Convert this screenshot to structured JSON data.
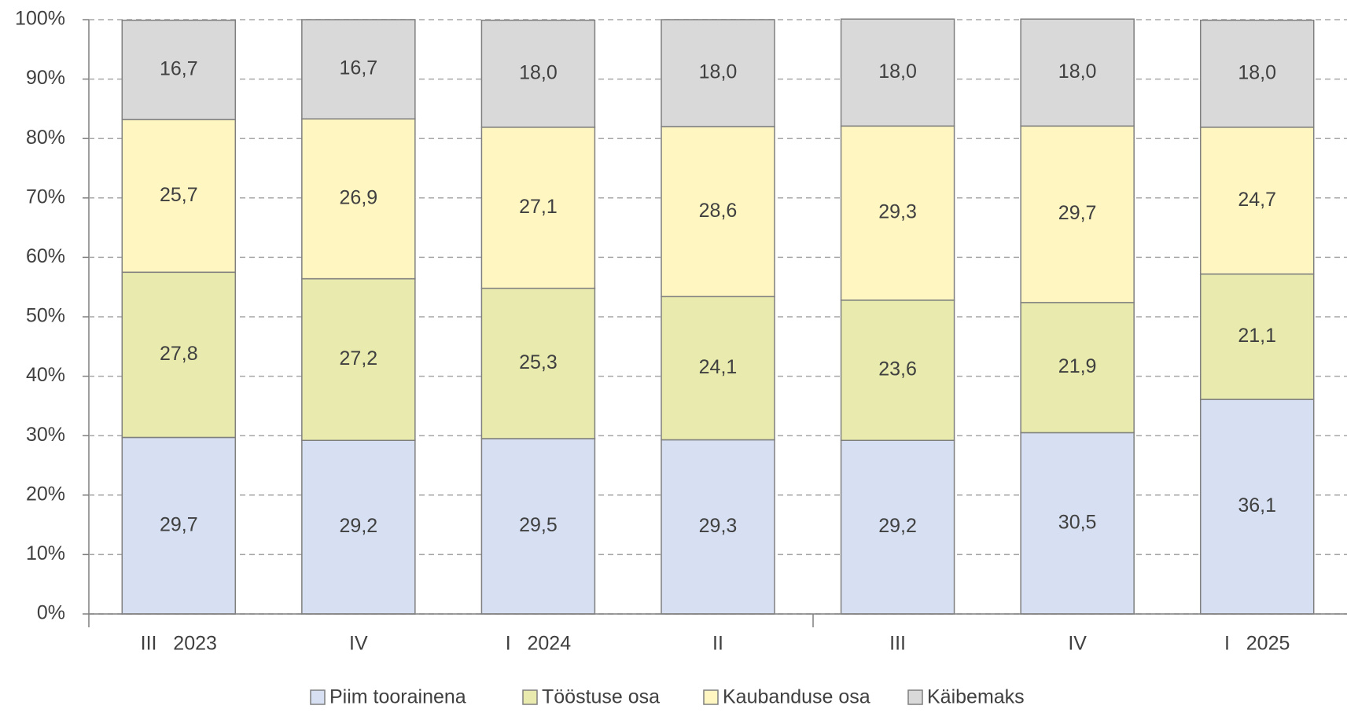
{
  "chart_data": {
    "type": "stacked_bar",
    "categories": [
      "III   2023",
      "IV",
      "I   2024",
      "II",
      "III",
      "IV",
      "I   2025"
    ],
    "series": [
      {
        "name": "Piim toorainena",
        "color": "#d6e0f2",
        "values": [
          29.7,
          29.2,
          29.5,
          29.3,
          29.2,
          30.5,
          36.1
        ],
        "value_labels": [
          "29,7",
          "29,2",
          "29,5",
          "29,3",
          "29,2",
          "30,5",
          "36,1"
        ]
      },
      {
        "name": "Tööstuse osa",
        "color": "#e8ebad",
        "values": [
          27.8,
          27.2,
          25.3,
          24.1,
          23.6,
          21.9,
          21.1
        ],
        "value_labels": [
          "27,8",
          "27,2",
          "25,3",
          "24,1",
          "23,6",
          "21,9",
          "21,1"
        ]
      },
      {
        "name": "Kaubanduse osa",
        "color": "#fff6c2",
        "values": [
          25.7,
          26.9,
          27.1,
          28.6,
          29.3,
          29.7,
          24.7
        ],
        "value_labels": [
          "25,7",
          "26,9",
          "27,1",
          "28,6",
          "29,3",
          "29,7",
          "24,7"
        ]
      },
      {
        "name": "Käibemaks",
        "color": "#d9d9d9",
        "values": [
          16.7,
          16.7,
          18.0,
          18.0,
          18.0,
          18.0,
          18.0
        ],
        "value_labels": [
          "16,7",
          "16,7",
          "18,0",
          "18,0",
          "18,0",
          "18,0",
          "18,0"
        ]
      }
    ],
    "ylim": [
      0,
      100
    ],
    "yticks": [
      {
        "value": 0,
        "label": "0%"
      },
      {
        "value": 10,
        "label": "10%"
      },
      {
        "value": 20,
        "label": "20%"
      },
      {
        "value": 30,
        "label": "30%"
      },
      {
        "value": 40,
        "label": "40%"
      },
      {
        "value": 50,
        "label": "50%"
      },
      {
        "value": 60,
        "label": "60%"
      },
      {
        "value": 70,
        "label": "70%"
      },
      {
        "value": 80,
        "label": "80%"
      },
      {
        "value": 90,
        "label": "90%"
      },
      {
        "value": 100,
        "label": "100%"
      }
    ],
    "grid": true,
    "legend": "bottom"
  }
}
